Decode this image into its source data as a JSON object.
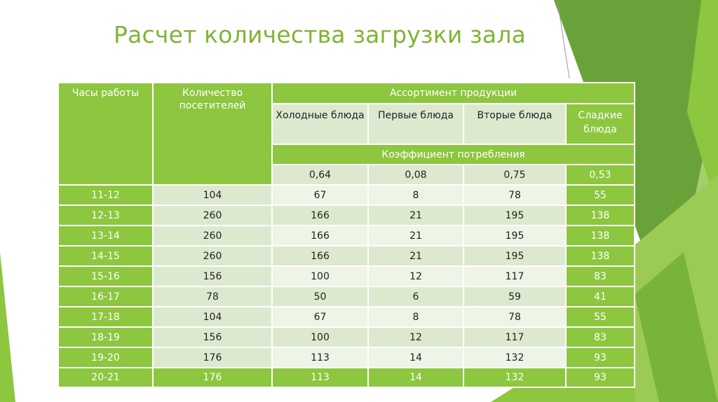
{
  "slide": {
    "title": "Расчет количества загрузки зала",
    "colors": {
      "accent": "#8dc63f",
      "title": "#7fb434",
      "cell_light": "#dde9cf",
      "cell_lighter": "#eef4e6"
    }
  },
  "table": {
    "header": {
      "hours": "Часы работы",
      "visitors": "Количество посетителей",
      "assortment": "Ассортимент продукции",
      "cold": "Холодные блюда",
      "first": "Первые блюда",
      "second": "Вторые блюда",
      "dessert": "Сладкие блюда",
      "coef_label": "Коэффициент потребления",
      "coef": [
        "0,64",
        "0,08",
        "0,75",
        "0,53"
      ]
    },
    "rows": [
      [
        "11-12",
        "104",
        "67",
        "8",
        "78",
        "55"
      ],
      [
        "12-13",
        "260",
        "166",
        "21",
        "195",
        "138"
      ],
      [
        "13-14",
        "260",
        "166",
        "21",
        "195",
        "138"
      ],
      [
        "14-15",
        "260",
        "166",
        "21",
        "195",
        "138"
      ],
      [
        "15-16",
        "156",
        "100",
        "12",
        "117",
        "83"
      ],
      [
        "16-17",
        "78",
        "50",
        "6",
        "59",
        "41"
      ],
      [
        "17-18",
        "104",
        "67",
        "8",
        "78",
        "55"
      ],
      [
        "18-19",
        "156",
        "100",
        "12",
        "117",
        "83"
      ],
      [
        "19-20",
        "176",
        "113",
        "14",
        "132",
        "93"
      ],
      [
        "20-21",
        "176",
        "113",
        "14",
        "132",
        "93"
      ]
    ]
  }
}
